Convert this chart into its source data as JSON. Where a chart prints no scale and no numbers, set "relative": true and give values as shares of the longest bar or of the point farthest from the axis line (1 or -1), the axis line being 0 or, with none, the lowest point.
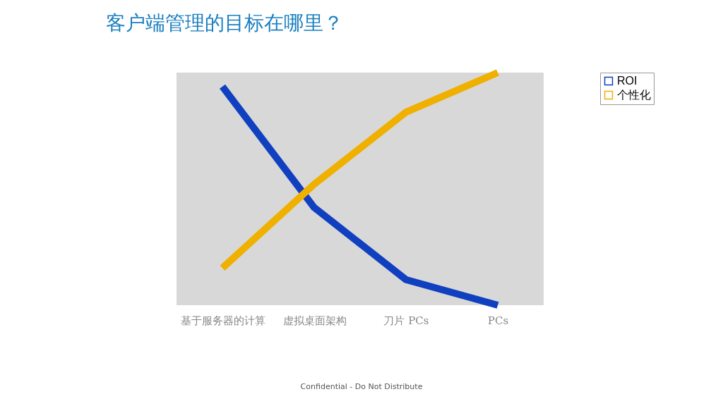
{
  "chart_data": {
    "type": "line",
    "title": "客户端管理的目标在哪里？",
    "categories": [
      "基于服务器的计算",
      "虚拟桌面架构",
      "刀片 PCs",
      "PCs"
    ],
    "relative": true,
    "legend": "right",
    "line_style": "solid",
    "series": [
      {
        "name": "ROI",
        "color": "#1040c0",
        "values": [
          0.94,
          0.42,
          0.11,
          0
        ]
      },
      {
        "name": "个性化",
        "color": "#f0b000",
        "values": [
          0.16,
          0.52,
          0.83,
          1
        ]
      }
    ],
    "annotations": [
      "Confidential - Do Not Distribute"
    ]
  }
}
